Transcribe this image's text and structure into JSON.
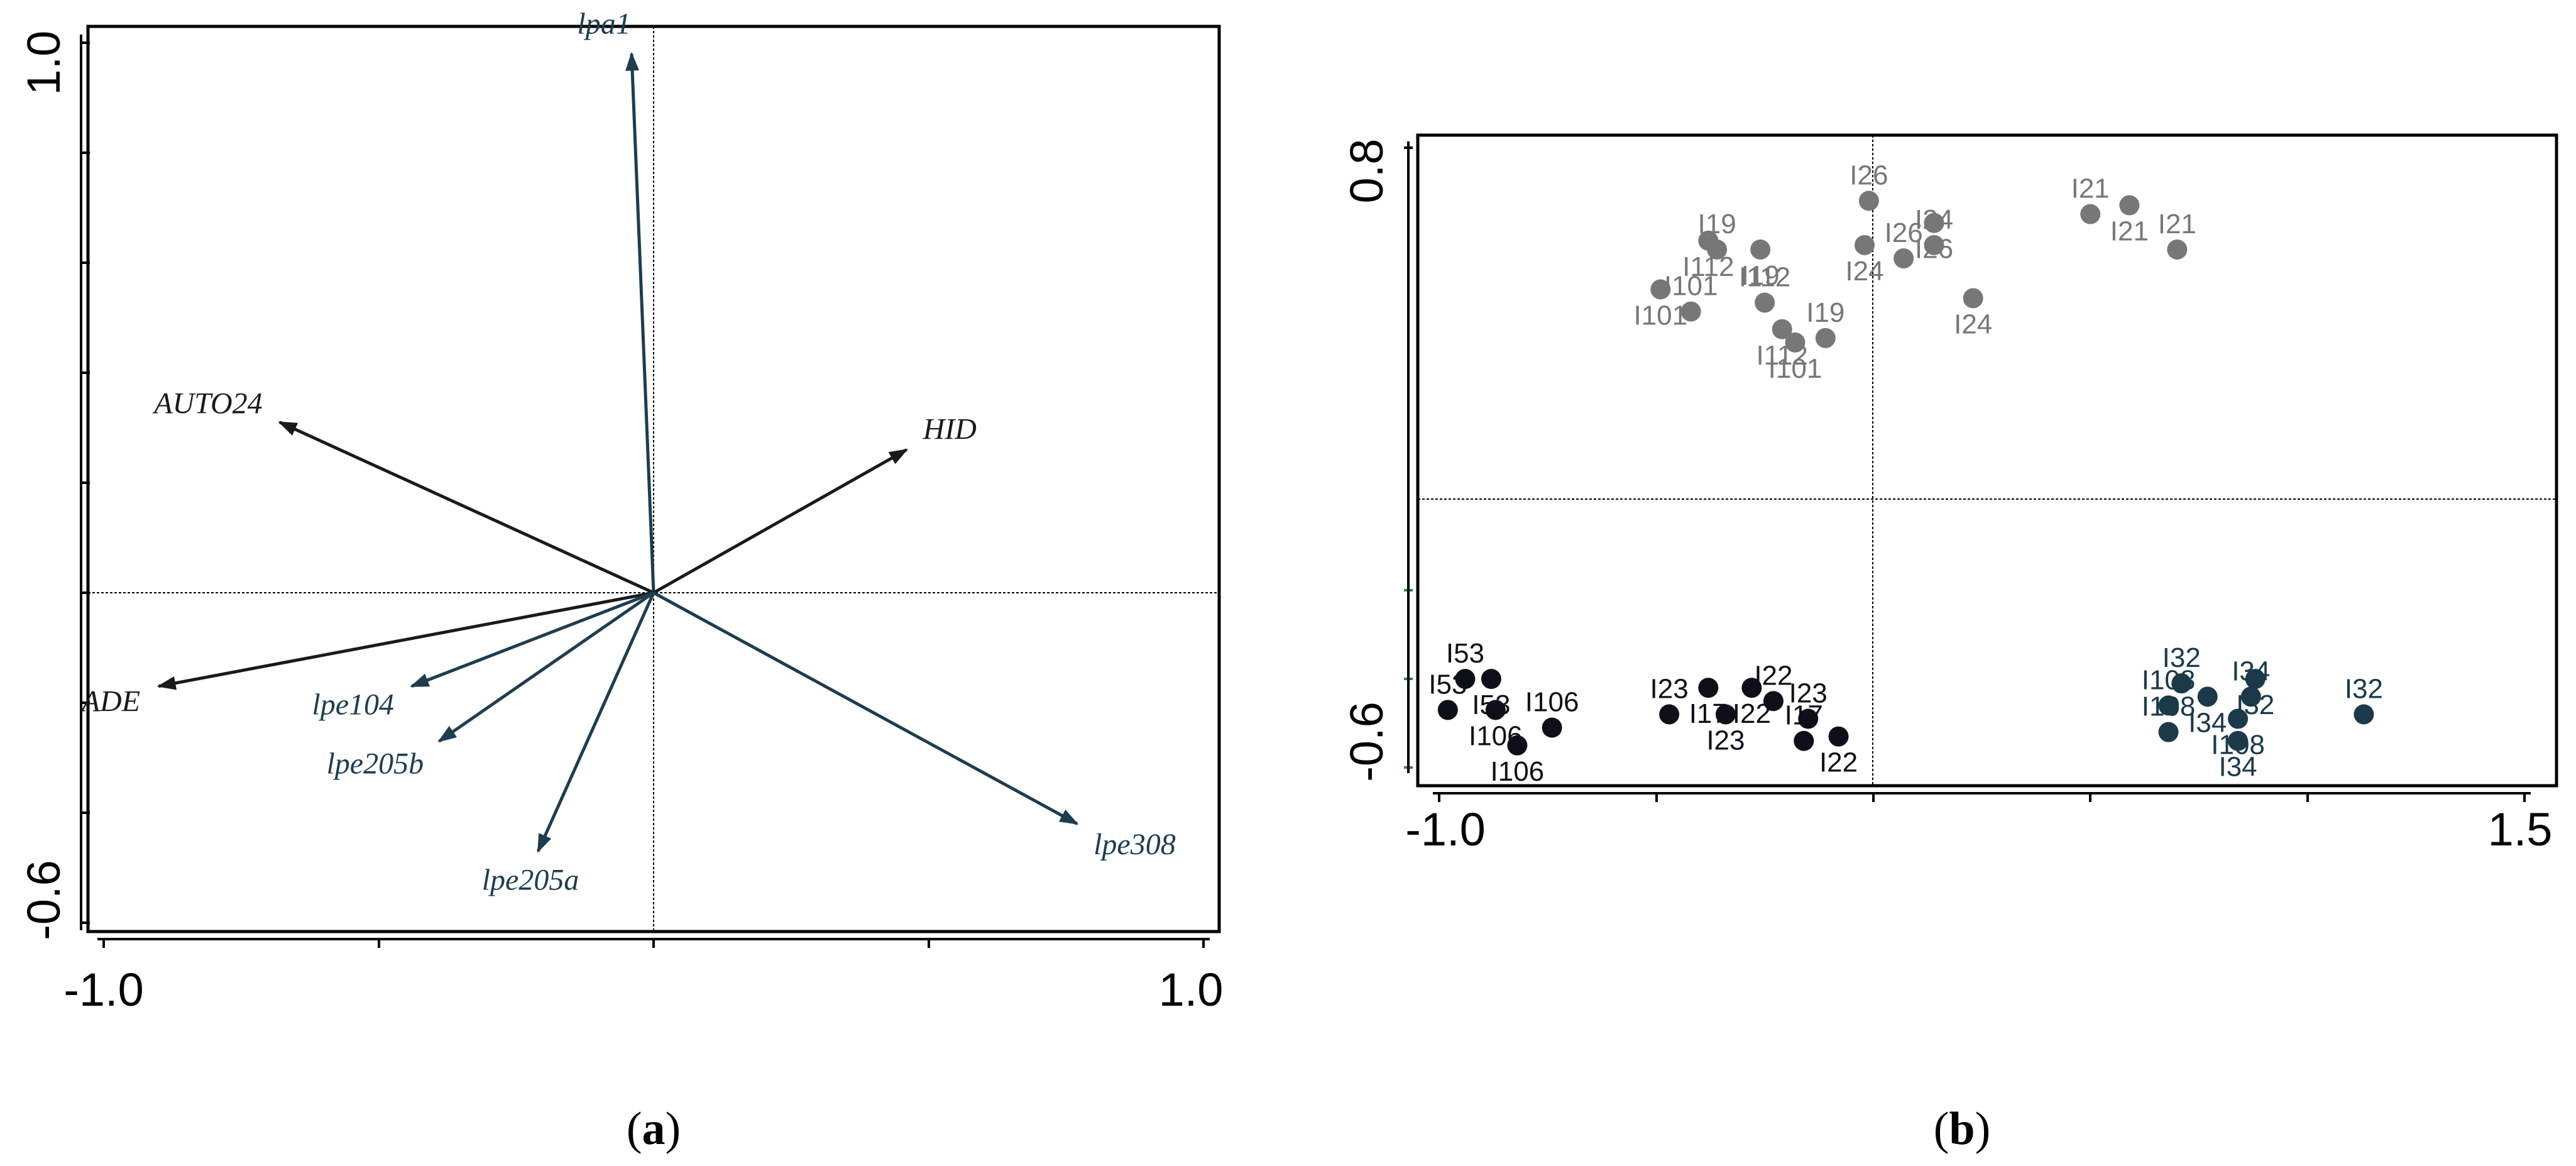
{
  "chart_data": [
    {
      "type": "biplot",
      "panel_label": "a",
      "xlim": [
        -1.0,
        1.0
      ],
      "ylim": [
        -0.6,
        1.0
      ],
      "x_tick_labels": [
        "-1.0",
        "1.0"
      ],
      "y_tick_labels": [
        "1.0",
        "-0.6"
      ],
      "grid": false,
      "reference_lines": true,
      "vectors": [
        {
          "name": "lpa1",
          "x": -0.04,
          "y": 0.98,
          "color": "#1e3d4f"
        },
        {
          "name": "AUTO24",
          "x": -0.68,
          "y": 0.31,
          "color": "#1a1a1a"
        },
        {
          "name": "HID",
          "x": 0.46,
          "y": 0.26,
          "color": "#1a1a1a"
        },
        {
          "name": "ADE",
          "x": -0.9,
          "y": -0.17,
          "color": "#1a1a1a"
        },
        {
          "name": "lpe104",
          "x": -0.44,
          "y": -0.17,
          "color": "#1e3d4f"
        },
        {
          "name": "lpe205b",
          "x": -0.39,
          "y": -0.27,
          "color": "#1e3d4f"
        },
        {
          "name": "lpe205a",
          "x": -0.21,
          "y": -0.47,
          "color": "#1e3d4f"
        },
        {
          "name": "lpe308",
          "x": 0.77,
          "y": -0.42,
          "color": "#1e3d4f"
        }
      ]
    },
    {
      "type": "scatter",
      "panel_label": "b",
      "xlim": [
        -1.0,
        1.5
      ],
      "ylim": [
        -0.6,
        0.8
      ],
      "x_tick_labels": [
        "-1.0",
        "1.5"
      ],
      "y_tick_labels": [
        "0.8",
        "-0.6"
      ],
      "grid": false,
      "reference_lines": true,
      "series": [
        {
          "color": "#777777",
          "points": [
            {
              "label": "I26",
              "x": -0.01,
              "y": 0.68
            },
            {
              "label": "I26",
              "x": 0.14,
              "y": 0.63
            },
            {
              "label": "I26",
              "x": 0.07,
              "y": 0.55
            },
            {
              "label": "I24",
              "x": -0.02,
              "y": 0.58
            },
            {
              "label": "I24",
              "x": 0.14,
              "y": 0.58
            },
            {
              "label": "I24",
              "x": 0.23,
              "y": 0.46
            },
            {
              "label": "I21",
              "x": 0.5,
              "y": 0.65
            },
            {
              "label": "I21",
              "x": 0.59,
              "y": 0.67
            },
            {
              "label": "I21",
              "x": 0.7,
              "y": 0.57
            },
            {
              "label": "I112",
              "x": -0.38,
              "y": 0.59
            },
            {
              "label": "I112",
              "x": -0.25,
              "y": 0.45
            },
            {
              "label": "I112",
              "x": -0.21,
              "y": 0.39
            },
            {
              "label": "I19",
              "x": -0.36,
              "y": 0.57
            },
            {
              "label": "I19",
              "x": -0.26,
              "y": 0.57
            },
            {
              "label": "I19",
              "x": -0.11,
              "y": 0.37
            },
            {
              "label": "I101",
              "x": -0.49,
              "y": 0.48
            },
            {
              "label": "I101",
              "x": -0.42,
              "y": 0.43
            },
            {
              "label": "I101",
              "x": -0.18,
              "y": 0.36
            }
          ]
        },
        {
          "color": "#0f0f19",
          "points": [
            {
              "label": "I53",
              "x": -0.94,
              "y": -0.4
            },
            {
              "label": "I53",
              "x": -0.88,
              "y": -0.4
            },
            {
              "label": "I53",
              "x": -0.98,
              "y": -0.47
            },
            {
              "label": "I106",
              "x": -0.87,
              "y": -0.47
            },
            {
              "label": "I106",
              "x": -0.74,
              "y": -0.51
            },
            {
              "label": "I106",
              "x": -0.82,
              "y": -0.55
            },
            {
              "label": "I23",
              "x": -0.47,
              "y": -0.48
            },
            {
              "label": "I23",
              "x": -0.34,
              "y": -0.48
            },
            {
              "label": "I23",
              "x": -0.15,
              "y": -0.49
            },
            {
              "label": "I17",
              "x": -0.38,
              "y": -0.42
            },
            {
              "label": "I17",
              "x": -0.16,
              "y": -0.54
            },
            {
              "label": "I22",
              "x": -0.28,
              "y": -0.42
            },
            {
              "label": "I22",
              "x": -0.23,
              "y": -0.45
            },
            {
              "label": "I22",
              "x": -0.08,
              "y": -0.53
            }
          ]
        },
        {
          "color": "#1a3a4a",
          "points": [
            {
              "label": "I32",
              "x": 0.71,
              "y": -0.41
            },
            {
              "label": "I32",
              "x": 0.88,
              "y": -0.4
            },
            {
              "label": "I32",
              "x": 1.13,
              "y": -0.48
            },
            {
              "label": "I34",
              "x": 0.77,
              "y": -0.44
            },
            {
              "label": "I34",
              "x": 0.87,
              "y": -0.44
            },
            {
              "label": "I34",
              "x": 0.84,
              "y": -0.54
            },
            {
              "label": "I108",
              "x": 0.68,
              "y": -0.46
            },
            {
              "label": "I108",
              "x": 0.84,
              "y": -0.49
            },
            {
              "label": "I108",
              "x": 0.68,
              "y": -0.52
            }
          ]
        }
      ]
    }
  ]
}
